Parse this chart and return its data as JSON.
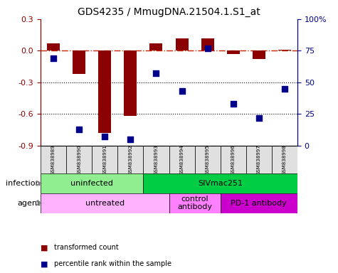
{
  "title": "GDS4235 / MmugDNA.21504.1.S1_at",
  "samples": [
    "GSM838989",
    "GSM838990",
    "GSM838991",
    "GSM838992",
    "GSM838993",
    "GSM838994",
    "GSM838995",
    "GSM838996",
    "GSM838997",
    "GSM838998"
  ],
  "bar_values": [
    0.07,
    -0.22,
    -0.78,
    -0.62,
    0.07,
    0.12,
    0.12,
    -0.03,
    -0.08,
    0.01
  ],
  "dot_values": [
    69,
    13,
    7,
    5,
    57,
    43,
    77,
    33,
    22,
    45
  ],
  "bar_color": "#8B0000",
  "dot_color": "#00008B",
  "dashed_line_color": "#cc2200",
  "ylim_left": [
    -0.9,
    0.3
  ],
  "ylim_right": [
    0,
    100
  ],
  "yticks_left": [
    -0.9,
    -0.6,
    -0.3,
    0.0,
    0.3
  ],
  "yticks_right": [
    0,
    25,
    50,
    75,
    100
  ],
  "ytick_labels_right": [
    "0",
    "25",
    "50",
    "75",
    "100%"
  ],
  "infection_groups": [
    {
      "label": "uninfected",
      "start": 0,
      "end": 4,
      "color": "#90EE90"
    },
    {
      "label": "SIVmac251",
      "start": 4,
      "end": 10,
      "color": "#00CC44"
    }
  ],
  "agent_groups": [
    {
      "label": "untreated",
      "start": 0,
      "end": 5,
      "color": "#FFB3FF"
    },
    {
      "label": "control\nantibody",
      "start": 5,
      "end": 7,
      "color": "#FF80FF"
    },
    {
      "label": "PD-1 antibody",
      "start": 7,
      "end": 10,
      "color": "#CC00CC"
    }
  ],
  "infection_label": "infection",
  "agent_label": "agent",
  "legend_bar_label": "transformed count",
  "legend_dot_label": "percentile rank within the sample",
  "bar_width": 0.5,
  "dot_size": 40
}
